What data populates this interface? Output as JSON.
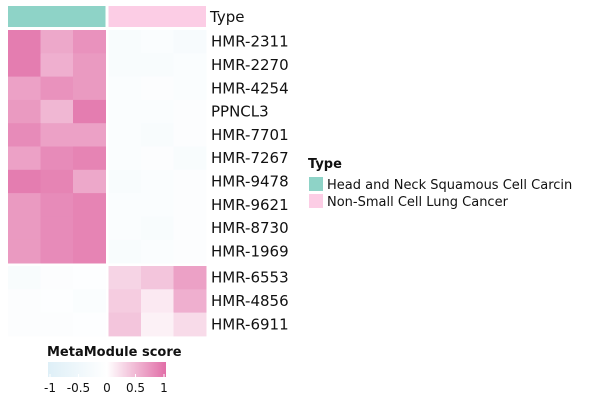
{
  "chart_data": {
    "type": "heatmap",
    "annotation": {
      "title": "Type",
      "groups": [
        {
          "name": "Head and Neck Squamous Cell Carcin",
          "color": "#8ed3c7"
        },
        {
          "name": "Non-Small Cell Lung Cancer",
          "color": "#fccde5"
        }
      ],
      "columns": [
        "Head and Neck Squamous Cell Carcin",
        "Head and Neck Squamous Cell Carcin",
        "Head and Neck Squamous Cell Carcin",
        "Non-Small Cell Lung Cancer",
        "Non-Small Cell Lung Cancer",
        "Non-Small Cell Lung Cancer"
      ]
    },
    "rows": [
      "HMR-2311",
      "HMR-2270",
      "HMR-4254",
      "PPNCL3",
      "HMR-7701",
      "HMR-7267",
      "HMR-9478",
      "HMR-9621",
      "HMR-8730",
      "HMR-1969",
      "HMR-6553",
      "HMR-4856",
      "HMR-6911"
    ],
    "values": [
      [
        0.9,
        0.6,
        0.75,
        -0.2,
        -0.15,
        -0.25
      ],
      [
        0.9,
        0.55,
        0.7,
        -0.2,
        -0.2,
        -0.15
      ],
      [
        0.65,
        0.75,
        0.7,
        -0.15,
        -0.1,
        -0.15
      ],
      [
        0.7,
        0.5,
        0.9,
        -0.15,
        -0.15,
        -0.1
      ],
      [
        0.8,
        0.65,
        0.65,
        -0.15,
        -0.2,
        -0.1
      ],
      [
        0.65,
        0.8,
        0.85,
        -0.15,
        -0.1,
        -0.2
      ],
      [
        0.9,
        0.85,
        0.6,
        -0.2,
        -0.15,
        -0.1
      ],
      [
        0.7,
        0.8,
        0.85,
        -0.15,
        -0.15,
        -0.1
      ],
      [
        0.7,
        0.8,
        0.85,
        -0.15,
        -0.2,
        -0.1
      ],
      [
        0.7,
        0.8,
        0.85,
        -0.2,
        -0.15,
        -0.1
      ],
      [
        -0.2,
        -0.1,
        -0.05,
        0.3,
        0.4,
        0.65
      ],
      [
        -0.1,
        -0.05,
        -0.15,
        0.35,
        0.15,
        0.55
      ],
      [
        -0.1,
        -0.1,
        -0.05,
        0.4,
        0.1,
        0.25
      ]
    ],
    "color_scale": {
      "title": "MetaModule score",
      "domain": [
        -1,
        1
      ],
      "ticks": [
        -1,
        -0.5,
        0,
        0.5,
        1
      ],
      "tick_labels": [
        "-1",
        "-0.5",
        "0",
        "0.5",
        "1"
      ],
      "low_color": "#deeff7",
      "mid_color": "#ffffff",
      "high_color": "#e16ea7"
    },
    "legend": {
      "title": "Type",
      "position": "right"
    }
  }
}
